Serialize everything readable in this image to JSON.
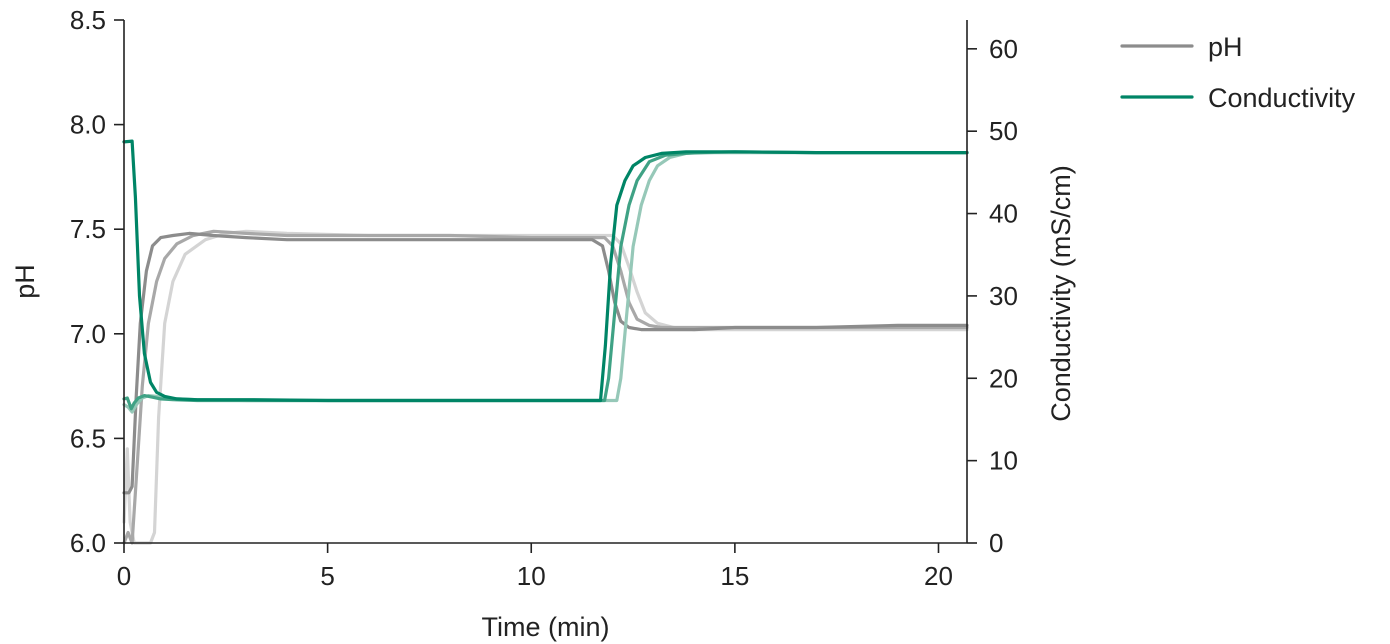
{
  "chart_data": {
    "type": "line",
    "xlabel": "Time (min)",
    "ylabel": "pH",
    "y2label": "Conductivity (mS/cm)",
    "xlim": [
      0,
      20.7
    ],
    "ylim": [
      6.0,
      8.5
    ],
    "y2lim": [
      0,
      63.5
    ],
    "xticks": [
      0,
      5,
      10,
      15,
      20
    ],
    "yticks": [
      6.0,
      6.5,
      7.0,
      7.5,
      8.0,
      8.5
    ],
    "y2ticks": [
      0,
      10,
      20,
      30,
      40,
      50,
      60
    ],
    "ytick_labels": [
      "6.0",
      "6.5",
      "7.0",
      "7.5",
      "8.0",
      "8.5"
    ],
    "y2tick_labels": [
      "0",
      "10",
      "20",
      "30",
      "40",
      "50",
      "60"
    ],
    "xtick_labels": [
      "0",
      "5",
      "10",
      "15",
      "20"
    ],
    "grid": false,
    "legend_position": "top-right",
    "legend": [
      {
        "label": "pH",
        "color": "#8c8c8c"
      },
      {
        "label": "Conductivity",
        "color": "#008566"
      }
    ],
    "series": [
      {
        "group": "pH",
        "axis": "left",
        "color": "#8c8c8c",
        "x": [
          0,
          0.12,
          0.2,
          0.3,
          0.4,
          0.55,
          0.7,
          0.9,
          1.2,
          1.6,
          2.2,
          3,
          4,
          5,
          6,
          8,
          10,
          11.5,
          11.75,
          11.9,
          12.05,
          12.2,
          12.4,
          12.7,
          13,
          14,
          15,
          17,
          19,
          20.7
        ],
        "y": [
          6.24,
          6.24,
          6.27,
          6.7,
          7.05,
          7.3,
          7.42,
          7.46,
          7.47,
          7.48,
          7.47,
          7.46,
          7.45,
          7.45,
          7.45,
          7.45,
          7.45,
          7.45,
          7.42,
          7.3,
          7.15,
          7.06,
          7.03,
          7.02,
          7.02,
          7.02,
          7.03,
          7.03,
          7.04,
          7.04
        ]
      },
      {
        "group": "pH",
        "axis": "left",
        "color": "#a8a8a8",
        "x": [
          0,
          0.1,
          0.2,
          0.3,
          0.45,
          0.6,
          0.8,
          1.0,
          1.3,
          1.7,
          2.2,
          3,
          4,
          6,
          8,
          10,
          11.8,
          12.0,
          12.2,
          12.4,
          12.6,
          12.9,
          13.2,
          14,
          16,
          18,
          20.7
        ],
        "y": [
          6.0,
          6.05,
          6.0,
          6.3,
          6.75,
          7.05,
          7.25,
          7.36,
          7.43,
          7.47,
          7.49,
          7.48,
          7.47,
          7.47,
          7.47,
          7.46,
          7.46,
          7.42,
          7.3,
          7.15,
          7.07,
          7.04,
          7.03,
          7.03,
          7.03,
          7.03,
          7.03
        ]
      },
      {
        "group": "pH",
        "axis": "left",
        "color": "#d4d4d4",
        "x": [
          0,
          0.08,
          0.15,
          0.25,
          0.35,
          0.5,
          0.65,
          0.75,
          0.85,
          1.0,
          1.2,
          1.5,
          2.0,
          2.5,
          3,
          4,
          6,
          8,
          10,
          12.0,
          12.2,
          12.4,
          12.6,
          12.8,
          13.1,
          13.5,
          14,
          16,
          18,
          20.7
        ],
        "y": [
          6.1,
          6.45,
          6.1,
          6.0,
          6.0,
          6.0,
          6.0,
          6.05,
          6.6,
          7.05,
          7.25,
          7.38,
          7.45,
          7.48,
          7.49,
          7.48,
          7.47,
          7.47,
          7.47,
          7.47,
          7.43,
          7.32,
          7.2,
          7.1,
          7.05,
          7.03,
          7.02,
          7.02,
          7.02,
          7.02
        ]
      },
      {
        "group": "Conductivity",
        "axis": "right",
        "color": "#008566",
        "x": [
          0,
          0.2,
          0.28,
          0.38,
          0.5,
          0.65,
          0.8,
          1.0,
          1.3,
          1.8,
          3,
          5,
          8,
          10,
          11.6,
          11.7,
          11.82,
          11.95,
          12.1,
          12.3,
          12.5,
          12.8,
          13.2,
          13.8,
          15,
          17,
          19,
          20.7
        ],
        "y": [
          48.7,
          48.8,
          42,
          30,
          23,
          19.5,
          18.3,
          17.8,
          17.5,
          17.4,
          17.4,
          17.3,
          17.3,
          17.3,
          17.3,
          17.3,
          24,
          34,
          41,
          44,
          45.8,
          46.8,
          47.3,
          47.5,
          47.5,
          47.4,
          47.4,
          47.4
        ]
      },
      {
        "group": "Conductivity",
        "axis": "right",
        "color": "#3fa285",
        "x": [
          0,
          0.08,
          0.18,
          0.25,
          0.35,
          0.5,
          0.7,
          0.9,
          1.2,
          1.8,
          3,
          5,
          8,
          10,
          11.8,
          11.9,
          12.05,
          12.2,
          12.4,
          12.6,
          12.9,
          13.3,
          14,
          15,
          17,
          19,
          20.7
        ],
        "y": [
          17.5,
          17.6,
          16.3,
          17.0,
          17.6,
          17.9,
          17.7,
          17.5,
          17.4,
          17.3,
          17.3,
          17.3,
          17.3,
          17.3,
          17.3,
          20,
          28,
          36,
          41,
          44,
          46.3,
          47.1,
          47.4,
          47.5,
          47.4,
          47.4,
          47.4
        ]
      },
      {
        "group": "Conductivity",
        "axis": "right",
        "color": "#96c8b8",
        "x": [
          0,
          0.1,
          0.2,
          0.32,
          0.45,
          0.6,
          0.8,
          1.0,
          1.3,
          1.8,
          3,
          5,
          8,
          10,
          12.1,
          12.2,
          12.35,
          12.5,
          12.7,
          12.9,
          13.1,
          13.4,
          13.8,
          14.5,
          16,
          18,
          20.7
        ],
        "y": [
          16.8,
          16.5,
          15.9,
          16.9,
          17.6,
          17.9,
          17.8,
          17.6,
          17.5,
          17.4,
          17.3,
          17.3,
          17.3,
          17.3,
          17.3,
          20,
          28,
          36,
          41,
          44,
          45.8,
          46.8,
          47.3,
          47.4,
          47.4,
          47.4,
          47.4
        ]
      }
    ]
  }
}
